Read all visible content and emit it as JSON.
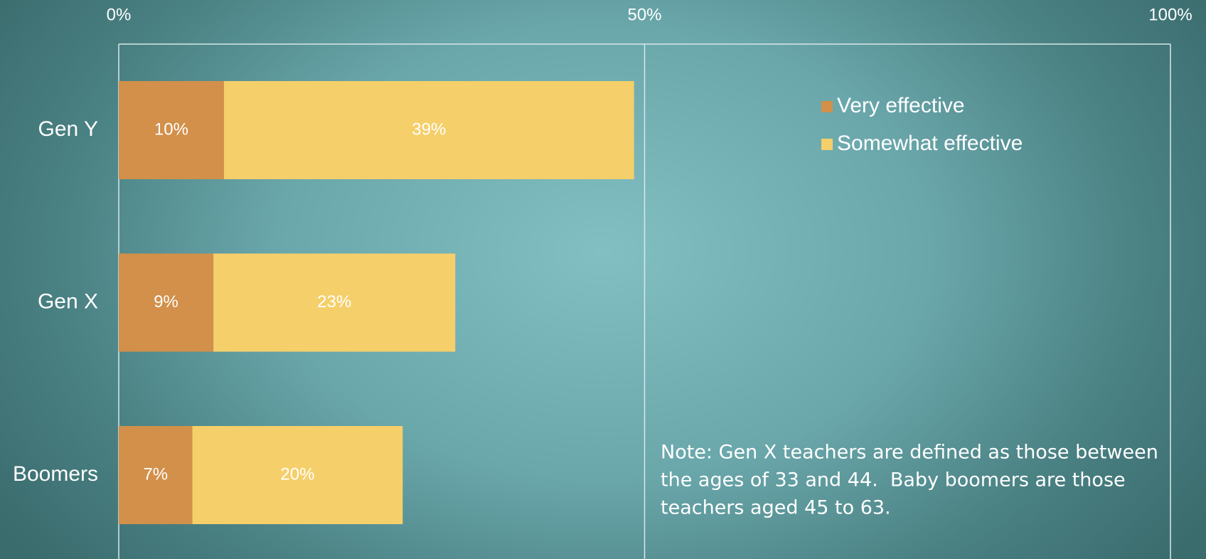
{
  "chart_data": {
    "type": "bar",
    "orientation": "horizontal",
    "stacked": true,
    "categories": [
      "Gen Y",
      "Gen X",
      "Boomers"
    ],
    "series": [
      {
        "name": "Very effective",
        "color": "#d2904a",
        "values": [
          10,
          9,
          7
        ],
        "value_labels": [
          "10%",
          "9%",
          "7%"
        ]
      },
      {
        "name": "Somewhat effective",
        "color": "#f5cf6a",
        "values": [
          39,
          23,
          20
        ],
        "value_labels": [
          "39%",
          "23%",
          "20%"
        ]
      }
    ],
    "xlim": [
      0,
      100
    ],
    "xticks": [
      {
        "value": 0,
        "label": "0%"
      },
      {
        "value": 50,
        "label": "50%"
      },
      {
        "value": 100,
        "label": "100%"
      }
    ],
    "grid": true,
    "legend": "top-right",
    "annotations": [
      "Note: Gen X teachers are defined as those between",
      "the ages of 33 and 44.  Baby boomers are those",
      "teachers aged 45 to 63."
    ]
  }
}
